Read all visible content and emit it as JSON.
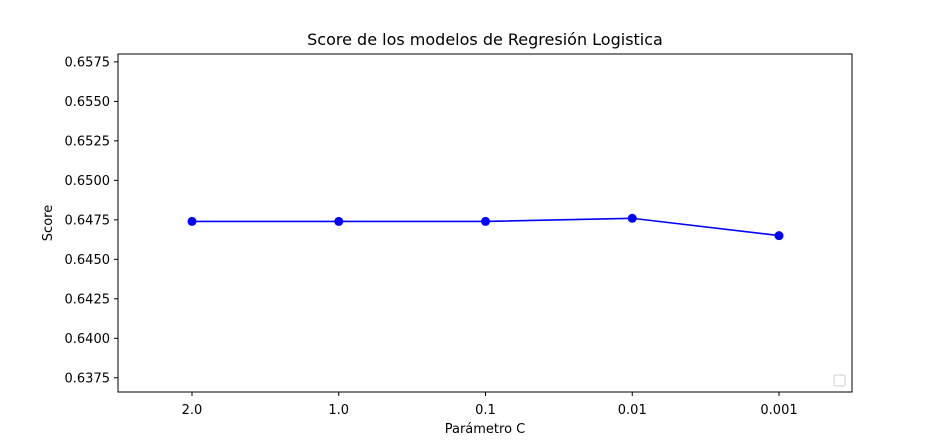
{
  "chart_data": {
    "type": "line",
    "title": "Score de los modelos de Regresión Logistica",
    "xlabel": "Parámetro C",
    "ylabel": "Score",
    "categories": [
      "2.0",
      "1.0",
      "0.1",
      "0.01",
      "0.001"
    ],
    "series": [
      {
        "values": [
          0.6474,
          0.6474,
          0.6474,
          0.6476,
          0.6465
        ],
        "color": "#0000ff",
        "marker": "circle"
      }
    ],
    "yticks": [
      "0.6375",
      "0.6400",
      "0.6425",
      "0.6450",
      "0.6475",
      "0.6500",
      "0.6525",
      "0.6550",
      "0.6575"
    ],
    "ylim": [
      0.6366,
      0.658
    ],
    "grid": false,
    "legend": {
      "placement": "bottom-right",
      "entries": []
    }
  }
}
